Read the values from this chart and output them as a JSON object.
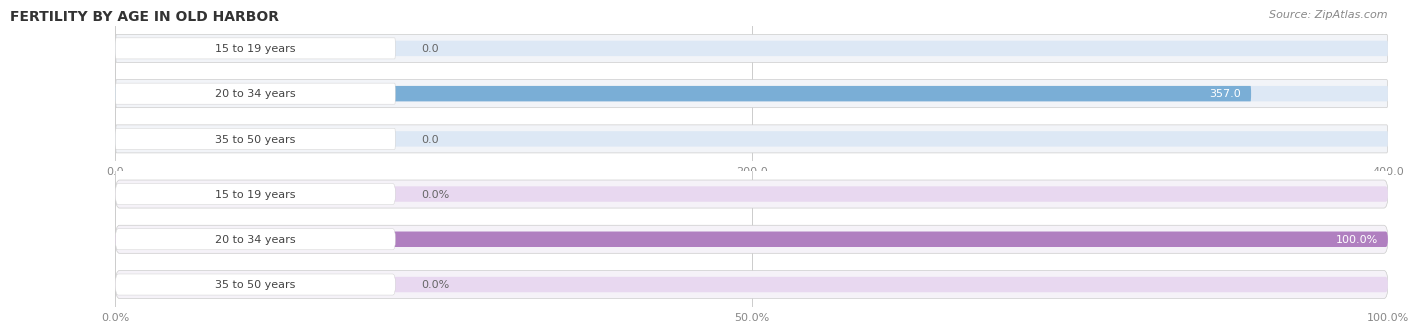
{
  "title": "FERTILITY BY AGE IN OLD HARBOR",
  "source": "Source: ZipAtlas.com",
  "top_chart": {
    "categories": [
      "15 to 19 years",
      "20 to 34 years",
      "35 to 50 years"
    ],
    "values": [
      0.0,
      357.0,
      0.0
    ],
    "xlim": [
      0,
      400.0
    ],
    "xticks": [
      0.0,
      200.0,
      400.0
    ],
    "xticklabels": [
      "0.0",
      "200.0",
      "400.0"
    ],
    "bar_color": "#7aaed6",
    "bar_bg_color": "#dde8f5",
    "row_bg_color": "#f2f4f8",
    "label_inside_color": "#ffffff",
    "label_outside_color": "#666666"
  },
  "bottom_chart": {
    "categories": [
      "15 to 19 years",
      "20 to 34 years",
      "35 to 50 years"
    ],
    "values": [
      0.0,
      100.0,
      0.0
    ],
    "xlim": [
      0,
      100.0
    ],
    "xticks": [
      0.0,
      50.0,
      100.0
    ],
    "xticklabels": [
      "0.0%",
      "50.0%",
      "100.0%"
    ],
    "bar_color": "#b07fc0",
    "bar_bg_color": "#e8d8f0",
    "row_bg_color": "#f5f2f8",
    "label_inside_color": "#ffffff",
    "label_outside_color": "#666666"
  },
  "fig_bg_color": "#ffffff",
  "title_color": "#333333",
  "title_fontsize": 10,
  "label_fontsize": 8,
  "tick_fontsize": 8,
  "source_fontsize": 8,
  "source_color": "#888888"
}
